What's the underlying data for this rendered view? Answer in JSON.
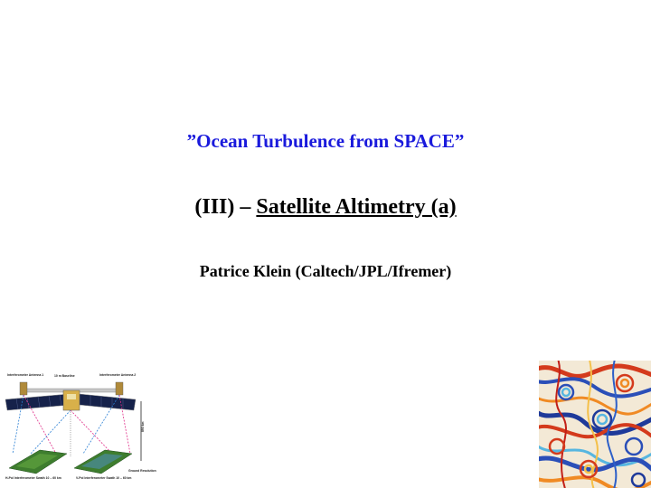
{
  "slide": {
    "title": "”Ocean Turbulence from SPACE”",
    "subtitle_prefix": "(III) – ",
    "subtitle_underlined": "Satellite Altimetry (a)",
    "author": "Patrice Klein (Caltech/JPL/Ifremer)"
  },
  "figure_left": {
    "labels": {
      "antenna1": "Interferometer Antenna 1",
      "baseline": "10 m Baseline",
      "antenna2": "Interferometer Antenna 2",
      "altitude": "890 km",
      "hpol": "H-Pol Interferometer Swath 10 – 60 km",
      "vpol": "V-Pol Interferometer Swath 10 – 60 km",
      "resolution": "Ground Resolution"
    }
  },
  "colors": {
    "title": "#1a1adc",
    "text": "#000000"
  }
}
